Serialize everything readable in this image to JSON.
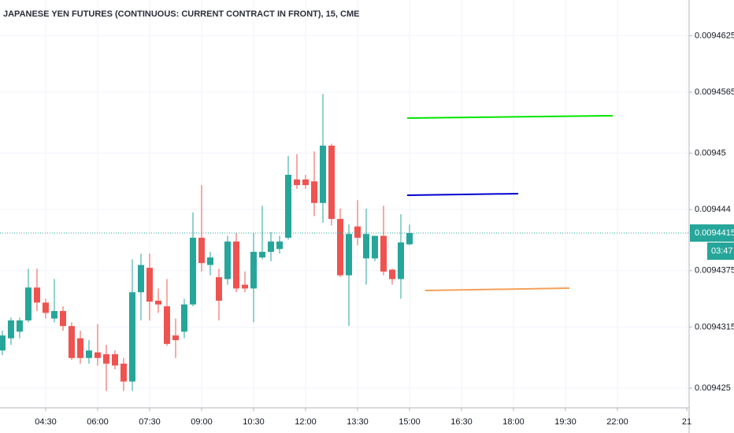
{
  "chart_data": {
    "type": "candlestick",
    "title": "JAPANESE YEN FUTURES (CONTINUOUS: CURRENT CONTRACT IN FRONT), 15, CME",
    "up_color": "#26a69a",
    "down_color": "#ef5350",
    "grid": true,
    "open": [
      0.009429,
      0.0094303,
      0.009431,
      0.0094322,
      0.0094357,
      0.0094341,
      0.0094324,
      0.0094332,
      0.0094316,
      0.0094303,
      0.0094282,
      0.0094288,
      0.0094286,
      0.0094286,
      0.0094276,
      0.0094257,
      0.0094352,
      0.0094378,
      0.0094343,
      0.0094337,
      0.0094306,
      0.009431,
      0.0094339,
      0.009441,
      0.0094381,
      0.0094368,
      0.0094366,
      0.0094406,
      0.009436,
      0.0094356,
      0.0094389,
      0.0094395,
      0.0094398,
      0.009441,
      0.0094472,
      0.0094472,
      0.009447,
      0.0094447,
      0.0094508,
      0.009443,
      0.009437,
      0.0094422,
      0.0094388,
      0.0094388,
      0.0094412,
      0.0094376,
      0.0094366,
      0.0094403
    ],
    "high": [
      0.0094311,
      0.0094325,
      0.0094325,
      0.0094377,
      0.0094377,
      0.0094345,
      0.0094366,
      0.0094337,
      0.009432,
      0.0094311,
      0.0094301,
      0.0094318,
      0.0094296,
      0.009429,
      0.0094282,
      0.0094387,
      0.0094393,
      0.0094393,
      0.0094356,
      0.0094366,
      0.0094324,
      0.0094345,
      0.0094437,
      0.0094466,
      0.0094395,
      0.0094377,
      0.0094412,
      0.0094415,
      0.0094374,
      0.0094415,
      0.0094444,
      0.0094416,
      0.0094412,
      0.0094497,
      0.0094499,
      0.0094477,
      0.0094502,
      0.0094563,
      0.009451,
      0.0094441,
      0.0094424,
      0.009445,
      0.0094441,
      0.0094412,
      0.0094444,
      0.0094377,
      0.0094435,
      0.0094424
    ],
    "low": [
      0.0094285,
      0.0094296,
      0.0094303,
      0.009432,
      0.0094332,
      0.0094324,
      0.009432,
      0.0094311,
      0.009428,
      0.0094276,
      0.0094276,
      0.0094274,
      0.0094247,
      0.009427,
      0.0094247,
      0.0094247,
      0.0094322,
      0.0094322,
      0.009433,
      0.0094295,
      0.0094282,
      0.0094303,
      0.0094337,
      0.0094374,
      0.009437,
      0.0094322,
      0.009436,
      0.0094352,
      0.0094352,
      0.009432,
      0.0094387,
      0.0094385,
      0.0094393,
      0.0094408,
      0.0094462,
      0.0094462,
      0.0094433,
      0.0094426,
      0.0094423,
      0.0094368,
      0.0094316,
      0.0094402,
      0.009436,
      0.0094385,
      0.009437,
      0.009436,
      0.0094345,
      0.0094402
    ],
    "close": [
      0.0094306,
      0.0094322,
      0.0094322,
      0.0094357,
      0.0094341,
      0.009433,
      0.0094332,
      0.0094316,
      0.0094282,
      0.0094282,
      0.009429,
      0.0094282,
      0.0094276,
      0.0094274,
      0.0094257,
      0.0094352,
      0.0094381,
      0.0094342,
      0.0094339,
      0.0094297,
      0.0094301,
      0.0094339,
      0.009441,
      0.0094383,
      0.0094389,
      0.0094343,
      0.0094406,
      0.0094356,
      0.0094356,
      0.0094395,
      0.0094395,
      0.0094406,
      0.0094406,
      0.0094477,
      0.0094466,
      0.0094466,
      0.0094447,
      0.0094508,
      0.009443,
      0.009437,
      0.0094414,
      0.009441,
      0.0094414,
      0.0094412,
      0.0094374,
      0.0094366,
      0.0094405,
      0.0094415
    ],
    "last_price": 0.0094415,
    "countdown": "03:47",
    "ylim": [
      0.0094229,
      0.0094663
    ],
    "yticks": [
      0.0094625,
      0.0094565,
      0.00945,
      0.009444,
      0.0094375,
      0.0094315,
      0.009425
    ],
    "xlim": [
      -0.27,
      79.27
    ],
    "xticks": [
      {
        "value": 5,
        "label": "04:30"
      },
      {
        "value": 11,
        "label": "06:00"
      },
      {
        "value": 17,
        "label": "07:30"
      },
      {
        "value": 23,
        "label": "09:00"
      },
      {
        "value": 29,
        "label": "10:30"
      },
      {
        "value": 35,
        "label": "12:00"
      },
      {
        "value": 41,
        "label": "13:30"
      },
      {
        "value": 47,
        "label": "15:00"
      },
      {
        "value": 53,
        "label": "16:30"
      },
      {
        "value": 59,
        "label": "18:00"
      },
      {
        "value": 65,
        "label": "19:30"
      },
      {
        "value": 71,
        "label": "22:00"
      },
      {
        "value": 79,
        "label": "21"
      }
    ]
  }
}
